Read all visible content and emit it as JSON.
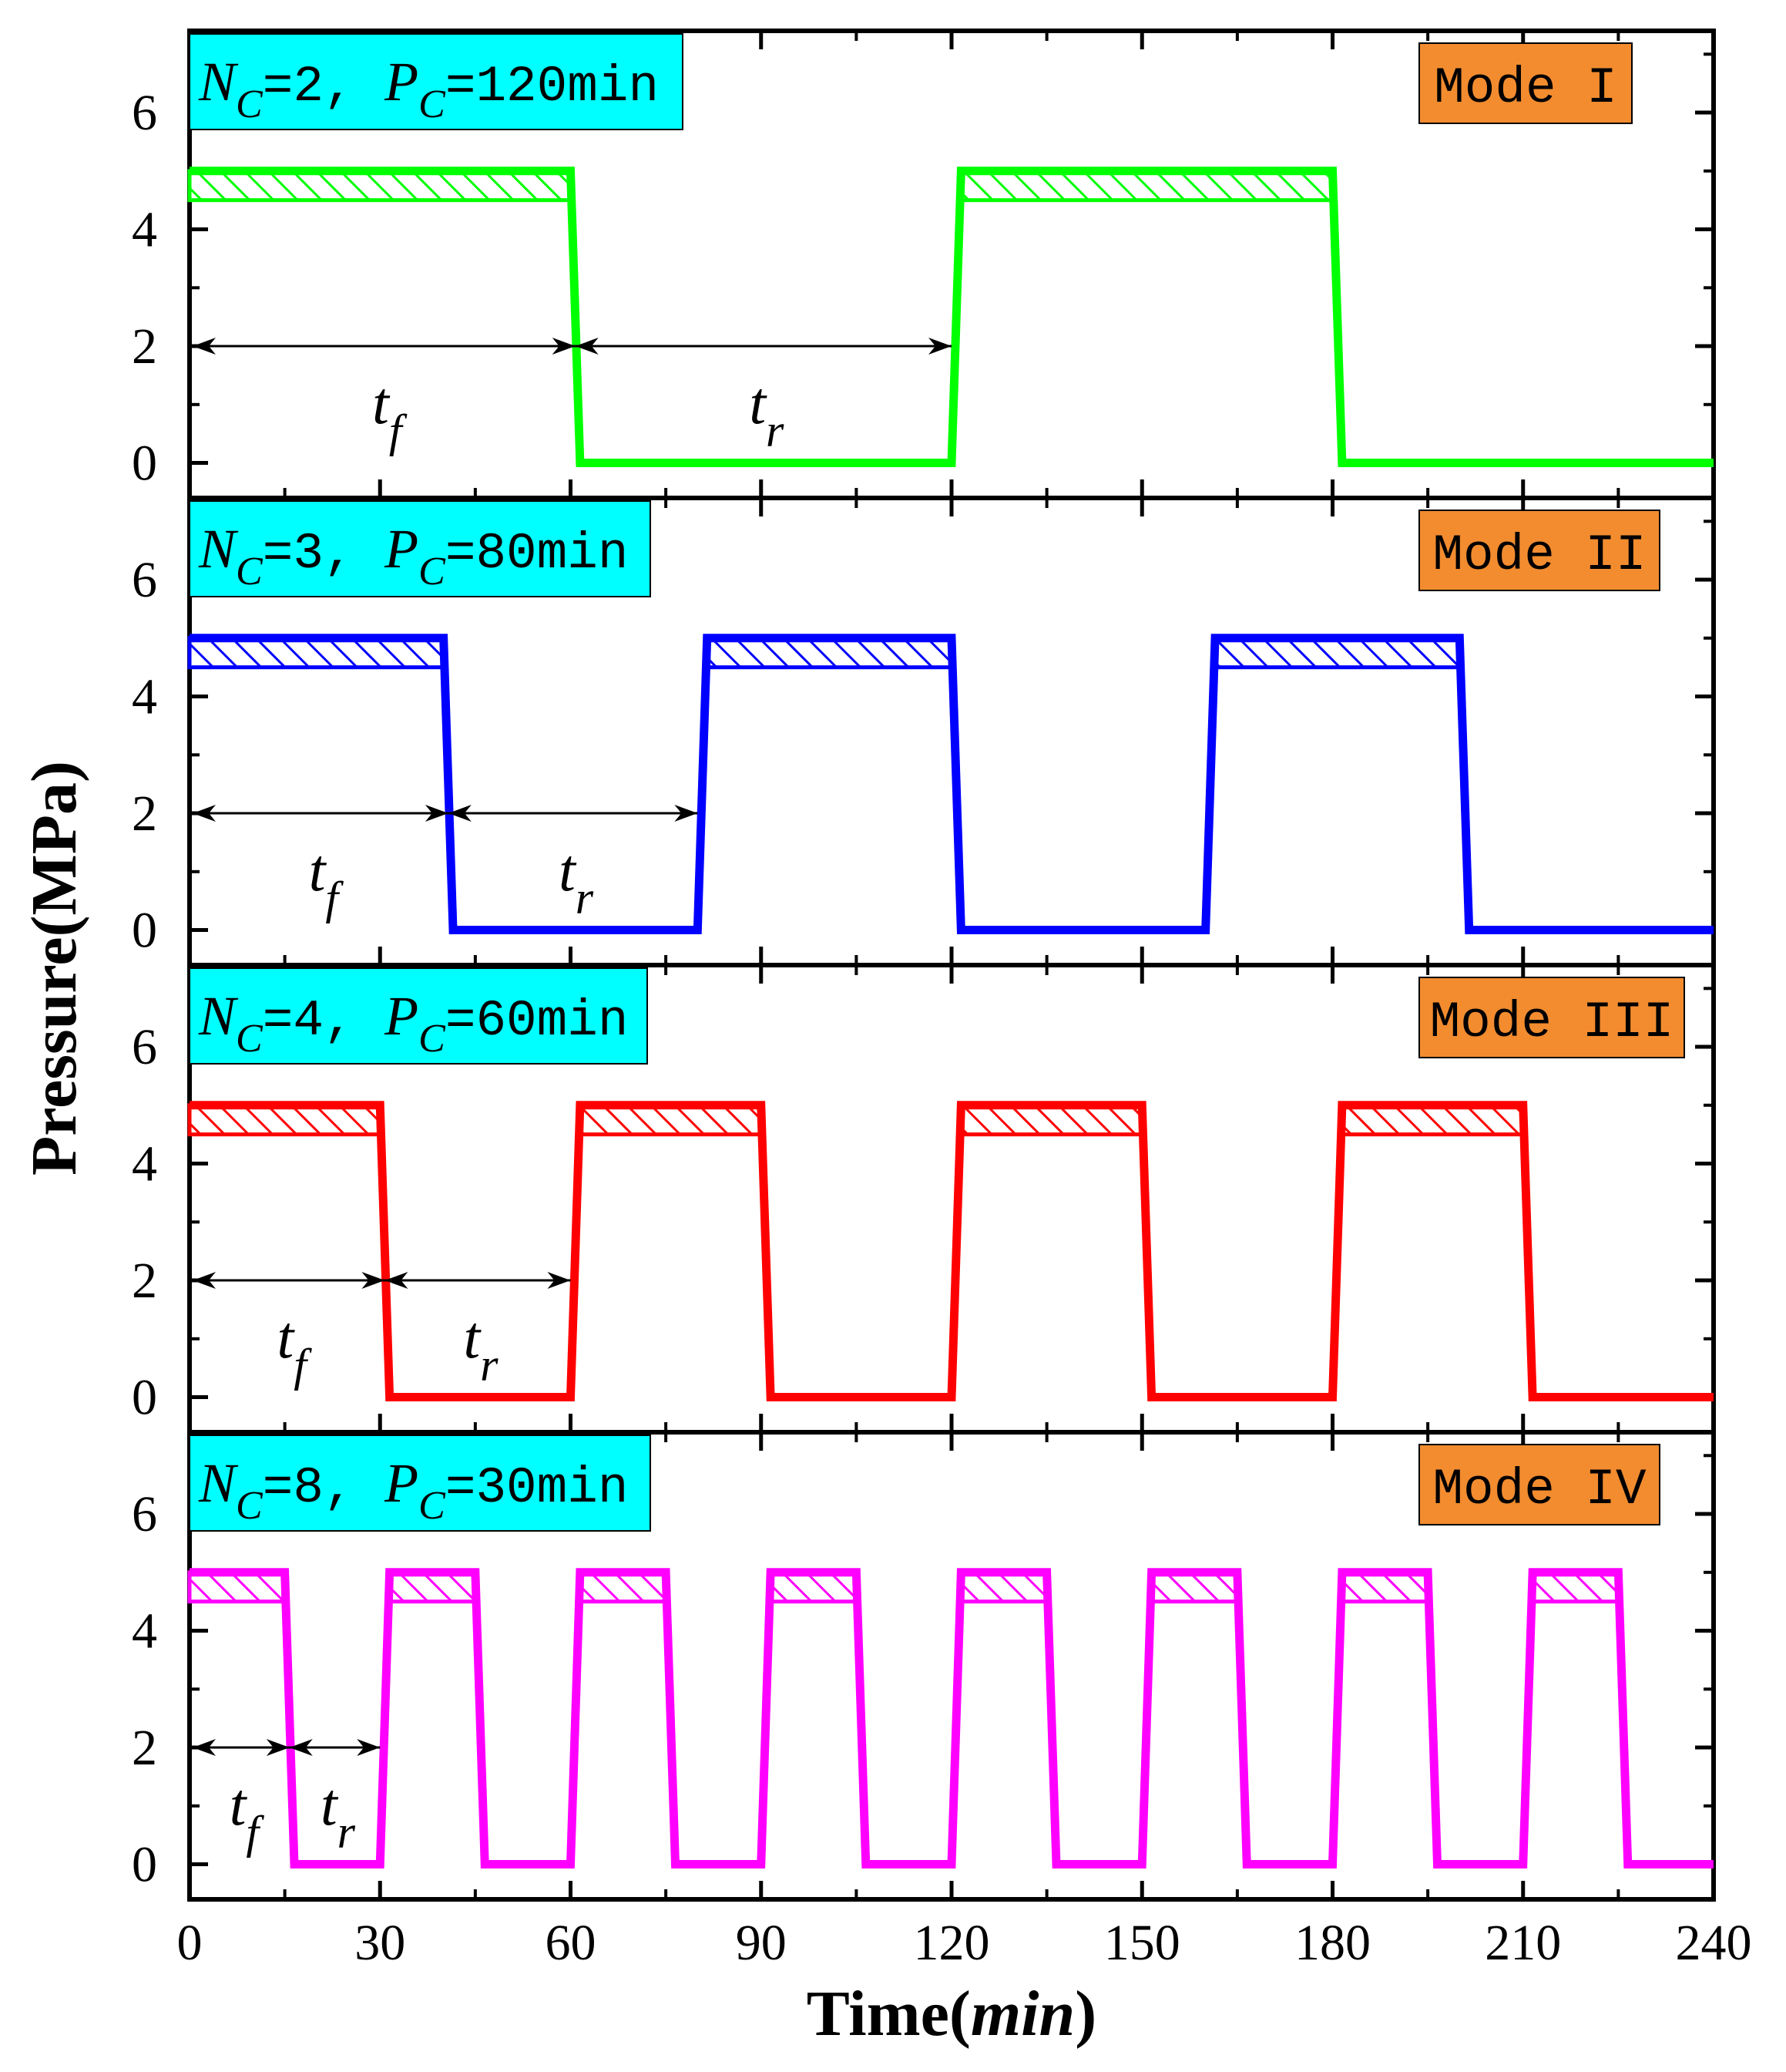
{
  "colors": {
    "frame": "#000000",
    "label_box_left": "#00ffff",
    "label_box_right": "#f28c2f"
  },
  "chart_data": {
    "type": "line",
    "xlabel": "Time(min)",
    "xlabel_parts": {
      "plain": "Time(",
      "italic": "min",
      "close": ")"
    },
    "ylabel": "Pressure(MPa)",
    "xlim": [
      0,
      240
    ],
    "ylim": [
      -0.6,
      7.4
    ],
    "x_ticks": [
      0,
      30,
      60,
      90,
      120,
      150,
      180,
      210,
      240
    ],
    "x_tick_labels": [
      "0",
      "30",
      "60",
      "90",
      "120",
      "150",
      "180",
      "210",
      "240"
    ],
    "y_ticks": [
      0,
      2,
      4,
      6
    ],
    "y_tick_labels": [
      "0",
      "2",
      "4",
      "6"
    ],
    "high_pressure": 5,
    "hatch_band": [
      4.5,
      5
    ],
    "annotation_y": 2,
    "ramp_minutes": 1.5,
    "panels": [
      {
        "id": "mode-1",
        "mode_label": "Mode I",
        "nc_value": "2",
        "pc_value": "120min",
        "color": "#00ff00",
        "period": 120,
        "cycles": 2,
        "tf": 60,
        "tr": 60
      },
      {
        "id": "mode-2",
        "mode_label": "Mode II",
        "nc_value": "3",
        "pc_value": "80min",
        "color": "#0000ff",
        "period": 80,
        "cycles": 3,
        "tf": 40,
        "tr": 40
      },
      {
        "id": "mode-3",
        "mode_label": "Mode III",
        "nc_value": "4",
        "pc_value": "60min",
        "color": "#ff0000",
        "period": 60,
        "cycles": 4,
        "tf": 30,
        "tr": 30
      },
      {
        "id": "mode-4",
        "mode_label": "Mode IV",
        "nc_value": "8",
        "pc_value": "30min",
        "color": "#ff00ff",
        "period": 30,
        "cycles": 8,
        "tf": 15,
        "tr": 15
      }
    ],
    "symbols": {
      "N": "N",
      "C": "C",
      "P": "P",
      "t": "t",
      "f": "f",
      "r": "r",
      "eq": "=",
      "sep": ",  "
    }
  }
}
